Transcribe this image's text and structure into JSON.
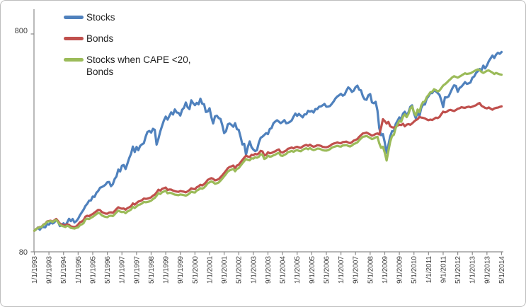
{
  "chart_data": {
    "type": "line",
    "title": "",
    "xlabel": "",
    "ylabel": "",
    "x_frequency": "monthly",
    "x_start": "1/1/1993",
    "x_end": "5/1/2014",
    "x_tick_interval_months": 8,
    "x_tick_labels": [
      "1/1/1993",
      "9/1/1993",
      "5/1/1994",
      "1/1/1995",
      "9/1/1995",
      "5/1/1996",
      "1/1/1997",
      "9/1/1997",
      "5/1/1998",
      "1/1/1999",
      "9/1/1999",
      "5/1/2000",
      "1/1/2001",
      "9/1/2001",
      "5/1/2002",
      "1/1/2003",
      "9/1/2003",
      "5/1/2004",
      "1/1/2005",
      "9/1/2005",
      "5/1/2006",
      "1/1/2007",
      "9/1/2007",
      "5/1/2008",
      "1/1/2009",
      "9/1/2009",
      "5/1/2010",
      "1/1/2011",
      "9/1/2011",
      "5/1/2012",
      "1/1/2013",
      "9/1/2013",
      "5/1/2014"
    ],
    "y_axis": {
      "scale": "log",
      "ticks": [
        80,
        800
      ],
      "ylim": [
        80,
        800
      ]
    },
    "grid": false,
    "legend_position": "top-left",
    "series": [
      {
        "name": "Stocks",
        "color": "#4F81BD",
        "values": [
          100,
          101.4,
          103.5,
          101.0,
          103.7,
          104.0,
          103.6,
          107.5,
          106.7,
          108.9,
          107.9,
          109.2,
          112.9,
          109.8,
          105.0,
          106.4,
          108.1,
          105.5,
          109.0,
          113.4,
          110.7,
          113.2,
          109.1,
          110.7,
          113.5,
          117.9,
          121.4,
          125.0,
          130.0,
          133.0,
          137.4,
          137.7,
          143.5,
          143.0,
          149.3,
          152.2,
          157.4,
          158.8,
          160.3,
          162.7,
          166.9,
          167.5,
          160.1,
          163.5,
          172.7,
          177.4,
          190.8,
          187.0,
          198.7,
          200.2,
          192.0,
          203.4,
          215.8,
          225.5,
          243.4,
          229.8,
          242.4,
          234.3,
          245.1,
          249.3,
          252.1,
          270.3,
          284.1,
          287.0,
          282.1,
          293.5,
          290.4,
          248.4,
          264.3,
          285.8,
          303.1,
          320.6,
          334.0,
          323.6,
          336.5,
          349.5,
          341.3,
          360.2,
          349.0,
          347.3,
          337.8,
          359.2,
          366.5,
          387.8,
          368.3,
          361.3,
          396.7,
          384.7,
          376.8,
          386.1,
          380.1,
          403.7,
          382.4,
          380.8,
          350.8,
          352.5,
          365.0,
          331.7,
          310.7,
          334.8,
          337.0,
          328.8,
          325.6,
          305.2,
          280.6,
          285.9,
          307.8,
          310.5,
          306.0,
          300.1,
          311.4,
          292.5,
          290.4,
          269.7,
          248.7,
          250.3,
          223.1,
          242.7,
          257.0,
          241.9,
          235.6,
          232.1,
          234.3,
          253.6,
          267.0,
          270.4,
          275.1,
          280.5,
          277.5,
          293.2,
          295.8,
          311.3,
          317.0,
          321.4,
          316.5,
          311.6,
          315.8,
          321.9,
          311.2,
          312.5,
          315.9,
          320.7,
          333.7,
          345.1,
          336.7,
          343.8,
          337.7,
          331.3,
          341.8,
          342.3,
          355.0,
          351.8,
          354.6,
          348.7,
          361.9,
          361.4,
          370.9,
          371.9,
          376.5,
          381.6,
          370.6,
          371.1,
          373.4,
          382.3,
          392.2,
          405.0,
          412.7,
          418.5,
          424.8,
          416.5,
          421.1,
          439.7,
          455.1,
          447.5,
          433.6,
          439.4,
          455.8,
          463.1,
          443.7,
          440.6,
          414.2,
          400.7,
          398.9,
          418.4,
          423.8,
          388.1,
          384.8,
          390.4,
          355.6,
          295.8,
          274.5,
          277.5,
          254.2,
          227.3,
          247.2,
          271.0,
          286.1,
          286.7,
          308.4,
          319.5,
          331.4,
          325.3,
          344.8,
          351.5,
          338.9,
          349.4,
          370.5,
          376.3,
          346.3,
          328.3,
          351.3,
          335.5,
          365.4,
          379.3,
          379.4,
          404.3,
          413.9,
          428.1,
          428.2,
          440.9,
          435.9,
          428.7,
          420.0,
          397.2,
          369.3,
          409.6,
          408.7,
          413.0,
          431.5,
          450.1,
          464.9,
          462.0,
          434.2,
          452.1,
          458.4,
          468.7,
          480.8,
          471.9,
          474.6,
          478.9,
          503.7,
          510.5,
          529.6,
          539.8,
          552.4,
          544.8,
          572.5,
          555.9,
          573.3,
          599.6,
          617.9,
          636.8,
          620.5,
          643.0,
          655.9,
          648.2,
          661.3
        ]
      },
      {
        "name": "Bonds",
        "color": "#C0504D",
        "values": [
          100,
          101.9,
          103.1,
          104.0,
          104.3,
          106.8,
          107.7,
          110.3,
          110.8,
          111.2,
          110.0,
          111.7,
          113.2,
          110.7,
          107.9,
          106.7,
          106.2,
          105.6,
          107.0,
          106.3,
          104.6,
          104.2,
          103.9,
          104.7,
          106.8,
          109.4,
          110.2,
          111.8,
          116.1,
          117.1,
          116.6,
          118.1,
          119.3,
          121.1,
          122.9,
          124.6,
          124.3,
          121.9,
          120.7,
          119.9,
          119.7,
          121.1,
          121.4,
          120.9,
          123.1,
          125.8,
          128.1,
          126.8,
          126.2,
          126.5,
          124.9,
          126.9,
          128.1,
          129.6,
          133.4,
          131.8,
          133.9,
          136.1,
          136.8,
          138.2,
          140.5,
          140.0,
          140.4,
          141.1,
          142.4,
          144.8,
          146.5,
          149.9,
          154.2,
          152.7,
          155.6,
          156.7,
          157.9,
          153.9,
          154.7,
          154.4,
          152.9,
          151.8,
          151.3,
          150.9,
          152.0,
          151.5,
          151.0,
          150.0,
          151.6,
          153.6,
          156.5,
          155.5,
          155.1,
          158.3,
          159.8,
          162.5,
          161.4,
          163.6,
          166.7,
          171.1,
          172.8,
          174.4,
          172.9,
          170.2,
          171.1,
          172.4,
          176.1,
          179.7,
          184.0,
          188.5,
          193.6,
          196.1,
          197.4,
          199.1,
          194.2,
          199.1,
          200.8,
          205.9,
          211.2,
          216.4,
          221.1,
          219.0,
          218.0,
          222.9,
          222.1,
          225.3,
          224.0,
          226.4,
          232.5,
          231.2,
          221.3,
          223.2,
          229.1,
          226.6,
          227.5,
          229.8,
          231.5,
          234.3,
          236.0,
          229.4,
          228.4,
          231.1,
          233.4,
          237.7,
          239.0,
          240.9,
          238.6,
          241.5,
          242.8,
          240.9,
          240.1,
          243.5,
          246.0,
          247.7,
          245.2,
          248.3,
          244.9,
          242.9,
          244.2,
          246.8,
          246.5,
          245.1,
          242.7,
          241.9,
          241.5,
          242.9,
          245.4,
          249.1,
          251.3,
          252.5,
          254.3,
          252.6,
          252.0,
          255.2,
          255.6,
          256.4,
          253.9,
          252.3,
          254.9,
          259.1,
          260.9,
          263.6,
          269.7,
          274.7,
          279.5,
          280.5,
          282.1,
          279.3,
          276.3,
          273.1,
          274.8,
          278.0,
          279.6,
          276.4,
          297.1,
          324.9,
          318.4,
          310.2,
          315.8,
          301.5,
          298.4,
          297.6,
          299.7,
          303.6,
          306.8,
          305.4,
          309.6,
          301.4,
          306.7,
          308.6,
          306.4,
          310.8,
          316.6,
          321.9,
          325.0,
          333.0,
          330.7,
          329.6,
          327.7,
          323.9,
          321.5,
          323.7,
          322.3,
          325.9,
          330.4,
          329.0,
          332.6,
          342.6,
          352.0,
          349.3,
          351.6,
          356.9,
          358.6,
          356.4,
          354.2,
          358.2,
          362.7,
          364.9,
          369.1,
          367.4,
          366.5,
          369.3,
          370.9,
          368.7,
          371.1,
          373.9,
          376.5,
          382.4,
          385.7,
          374.5,
          370.5,
          366.3,
          364.4,
          367.8,
          363.4,
          359.1,
          364.1,
          366.4,
          367.3,
          370.2,
          372.0
        ]
      },
      {
        "name": "Stocks when CAPE <20, Bonds",
        "color": "#9BBB59",
        "values": [
          100,
          101.8,
          102.9,
          103.8,
          104.0,
          106.5,
          107.4,
          109.9,
          110.4,
          110.8,
          109.6,
          111.2,
          112.0,
          109.4,
          106.6,
          105.3,
          104.7,
          104.0,
          105.4,
          104.6,
          103.0,
          102.6,
          102.3,
          103.1,
          103.6,
          106.1,
          106.9,
          108.4,
          112.7,
          113.6,
          113.1,
          114.6,
          115.7,
          117.5,
          119.2,
          120.9,
          119.9,
          117.6,
          116.5,
          115.7,
          115.4,
          116.9,
          117.2,
          116.7,
          118.8,
          121.4,
          123.6,
          122.4,
          121.8,
          122.1,
          120.4,
          122.5,
          123.6,
          125.1,
          128.7,
          127.2,
          129.2,
          131.3,
          132.0,
          133.4,
          135.6,
          135.1,
          135.5,
          136.2,
          137.4,
          139.7,
          141.4,
          144.7,
          148.8,
          147.4,
          150.2,
          151.2,
          152.4,
          148.5,
          149.3,
          149.0,
          147.6,
          146.5,
          146.0,
          145.6,
          146.7,
          146.2,
          145.7,
          144.8,
          146.3,
          148.2,
          151.0,
          150.1,
          149.7,
          152.8,
          154.2,
          156.8,
          155.8,
          157.9,
          160.9,
          165.1,
          166.8,
          168.3,
          166.9,
          164.2,
          165.1,
          166.4,
          169.9,
          173.4,
          177.6,
          181.9,
          186.8,
          189.2,
          190.5,
          192.1,
          187.4,
          192.1,
          193.8,
          198.7,
          203.8,
          208.8,
          213.4,
          211.3,
          210.4,
          215.1,
          214.3,
          217.4,
          216.2,
          218.5,
          224.4,
          223.1,
          213.6,
          215.4,
          221.1,
          218.7,
          219.5,
          221.8,
          223.4,
          226.1,
          227.7,
          221.4,
          220.4,
          223.0,
          225.2,
          229.4,
          230.6,
          232.5,
          230.3,
          233.0,
          234.3,
          232.5,
          231.7,
          235.0,
          237.4,
          239.0,
          236.6,
          239.6,
          236.3,
          234.4,
          235.7,
          238.2,
          237.9,
          236.5,
          234.2,
          233.4,
          233.1,
          234.4,
          236.8,
          240.4,
          242.5,
          243.7,
          245.4,
          243.8,
          243.2,
          246.3,
          246.7,
          247.4,
          245.0,
          243.5,
          246.0,
          250.0,
          251.8,
          254.4,
          260.3,
          265.1,
          269.7,
          270.7,
          272.2,
          269.5,
          266.6,
          263.5,
          265.2,
          268.3,
          269.8,
          252.0,
          240.0,
          243.0,
          228.0,
          210.0,
          232.0,
          256.0,
          272.0,
          276.0,
          296.0,
          308.0,
          320.0,
          316.0,
          334.0,
          342.0,
          332.0,
          344.0,
          364.0,
          372.0,
          350.0,
          338.0,
          360.0,
          350.0,
          376.0,
          390.0,
          392.0,
          410.0,
          420.0,
          432.0,
          434.0,
          446.0,
          442.0,
          436.0,
          440.0,
          452.0,
          464.0,
          470.0,
          478.0,
          488.0,
          496.0,
          506.0,
          512.0,
          508.0,
          504.0,
          510.0,
          516.0,
          522.0,
          528.0,
          524.0,
          526.0,
          528.0,
          534.0,
          540.0,
          546.0,
          550.0,
          547.0,
          536.0,
          530.0,
          536.0,
          542.0,
          544.0,
          538.0,
          532.0,
          524.0,
          530.0,
          526.0,
          522.0,
          520.0
        ]
      }
    ]
  },
  "axis": {
    "y_top_label": "800",
    "y_bottom_label": "80"
  }
}
